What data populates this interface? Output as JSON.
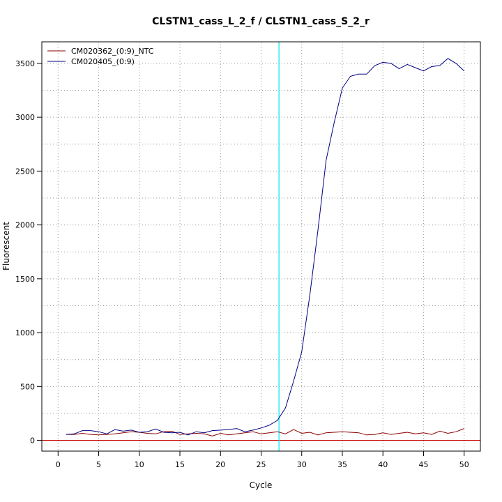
{
  "chart_data": {
    "type": "line",
    "title": "CLSTN1_cass_L_2_f / CLSTN1_cass_S_2_r",
    "xlabel": "Cycle",
    "ylabel": "Fluorescent",
    "xlim": [
      -2,
      52
    ],
    "ylim": [
      -100,
      3700
    ],
    "xticks": [
      0,
      5,
      10,
      15,
      20,
      25,
      30,
      35,
      40,
      45,
      50
    ],
    "yticks": [
      0,
      500,
      1000,
      1500,
      2000,
      2500,
      3000,
      3500
    ],
    "grid": true,
    "legend_position": "top-left",
    "threshold_y": 0,
    "threshold_color": "#cc0000",
    "cycle_marker_x": 27.2,
    "cycle_marker_color": "#00e5ee",
    "series": [
      {
        "name": "CM020362_(0:9)_NTC",
        "color": "#8b0000",
        "x": [
          1,
          2,
          3,
          4,
          5,
          6,
          7,
          8,
          9,
          10,
          11,
          12,
          13,
          14,
          15,
          16,
          17,
          18,
          19,
          20,
          21,
          22,
          23,
          24,
          25,
          26,
          27,
          28,
          29,
          30,
          31,
          32,
          33,
          34,
          35,
          36,
          37,
          38,
          39,
          40,
          41,
          42,
          43,
          44,
          45,
          46,
          47,
          48,
          49,
          50
        ],
        "values": [
          55,
          55,
          65,
          55,
          50,
          55,
          60,
          70,
          80,
          75,
          65,
          60,
          80,
          85,
          55,
          60,
          65,
          60,
          40,
          65,
          50,
          60,
          70,
          80,
          60,
          70,
          80,
          60,
          100,
          65,
          75,
          50,
          70,
          75,
          80,
          75,
          70,
          50,
          55,
          70,
          55,
          65,
          75,
          60,
          70,
          55,
          85,
          65,
          80,
          110
        ]
      },
      {
        "name": "CM020405_(0:9)",
        "color": "#000080",
        "x": [
          1,
          2,
          3,
          4,
          5,
          6,
          7,
          8,
          9,
          10,
          11,
          12,
          13,
          14,
          15,
          16,
          17,
          18,
          19,
          20,
          21,
          22,
          23,
          24,
          25,
          26,
          27,
          28,
          29,
          30,
          31,
          32,
          33,
          34,
          35,
          36,
          37,
          38,
          39,
          40,
          41,
          42,
          43,
          44,
          45,
          46,
          47,
          48,
          49,
          50
        ],
        "values": [
          55,
          60,
          90,
          90,
          80,
          60,
          100,
          85,
          95,
          75,
          80,
          105,
          75,
          70,
          75,
          50,
          80,
          70,
          90,
          95,
          100,
          110,
          80,
          95,
          115,
          140,
          185,
          300,
          550,
          820,
          1350,
          1950,
          2600,
          2950,
          3270,
          3380,
          3400,
          3400,
          3480,
          3510,
          3500,
          3450,
          3490,
          3460,
          3430,
          3470,
          3480,
          3545,
          3500,
          3430
        ]
      }
    ]
  }
}
